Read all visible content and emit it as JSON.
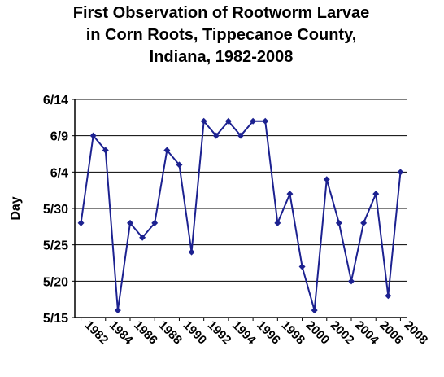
{
  "chart_data": {
    "type": "line",
    "title": [
      "First Observation of Rootworm Larvae",
      "in Corn Roots, Tippecanoe County,",
      "Indiana, 1982-2008"
    ],
    "y_label": "Day",
    "x": [
      1982,
      1983,
      1984,
      1985,
      1986,
      1987,
      1988,
      1989,
      1990,
      1991,
      1992,
      1993,
      1994,
      1995,
      1996,
      1997,
      1998,
      1999,
      2000,
      2001,
      2002,
      2003,
      2004,
      2005,
      2006,
      2007,
      2008
    ],
    "series": [
      {
        "name": "First observation",
        "color": "#1c2190",
        "values": [
          148,
          160,
          158,
          136,
          148,
          146,
          148,
          158,
          156,
          144,
          162,
          160,
          162,
          160,
          162,
          162,
          148,
          152,
          142,
          136,
          154,
          148,
          140,
          148,
          152,
          138,
          155
        ]
      }
    ],
    "xlim": [
      1981.5,
      2008.5
    ],
    "xticks": [
      1982,
      1984,
      1986,
      1988,
      1990,
      1992,
      1994,
      1996,
      1998,
      2000,
      2002,
      2004,
      2006,
      2008
    ],
    "ylim": [
      135,
      165
    ],
    "yticks": [
      {
        "value": 135,
        "label": "5/15"
      },
      {
        "value": 140,
        "label": "5/20"
      },
      {
        "value": 145,
        "label": "5/25"
      },
      {
        "value": 150,
        "label": "5/30"
      },
      {
        "value": 155,
        "label": "6/4"
      },
      {
        "value": 160,
        "label": "6/9"
      },
      {
        "value": 165,
        "label": "6/14"
      }
    ],
    "grid": true
  }
}
